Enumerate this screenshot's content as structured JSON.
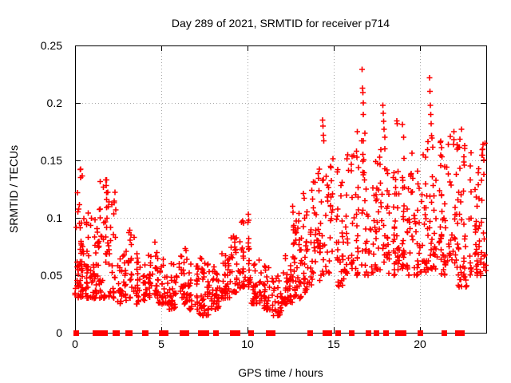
{
  "chart_data": {
    "type": "scatter",
    "title": "Day 289 of 2021, SRMTID for receiver p714",
    "xlabel": "GPS time / hours",
    "ylabel": "SRMTID / TECUs",
    "xlim": [
      0,
      23.84
    ],
    "ylim": [
      0,
      0.25
    ],
    "xticks": [
      0,
      5,
      10,
      15,
      20
    ],
    "yticks": [
      0,
      0.05,
      0.1,
      0.15,
      0.2,
      0.25
    ],
    "xtick_labels": [
      "0",
      "5",
      "10",
      "15",
      "20"
    ],
    "ytick_labels": [
      "0",
      "0.05",
      "0.1",
      "0.15",
      "0.2",
      "0.25"
    ],
    "grid": {
      "show": true,
      "style": "dotted",
      "color": "#a5a5a5"
    },
    "border_color": "#000000",
    "text_color": "#000000",
    "marker": {
      "shape": "plus",
      "color": "#ff0000",
      "size": 7
    },
    "zero_marker": {
      "shape": "filled-square",
      "color": "#ff0000",
      "size": 7
    },
    "seed": 77,
    "series": [
      {
        "name": "SRMTID",
        "representation": "density_envelope",
        "envelope_format": [
          "start_hour",
          "end_hour",
          "y_min",
          "y_max",
          "point_count"
        ],
        "envelope": [
          [
            0.0,
            0.35,
            0.03,
            0.145,
            35
          ],
          [
            0.35,
            0.9,
            0.03,
            0.105,
            45
          ],
          [
            0.9,
            1.4,
            0.03,
            0.115,
            40
          ],
          [
            1.4,
            1.9,
            0.03,
            0.135,
            35
          ],
          [
            1.9,
            2.4,
            0.03,
            0.125,
            30
          ],
          [
            2.4,
            3.0,
            0.025,
            0.075,
            35
          ],
          [
            3.0,
            3.6,
            0.03,
            0.09,
            30
          ],
          [
            3.6,
            4.2,
            0.025,
            0.065,
            30
          ],
          [
            4.2,
            4.8,
            0.03,
            0.085,
            35
          ],
          [
            4.8,
            5.4,
            0.025,
            0.065,
            30
          ],
          [
            5.4,
            6.0,
            0.02,
            0.06,
            30
          ],
          [
            6.0,
            6.6,
            0.025,
            0.075,
            35
          ],
          [
            6.6,
            7.2,
            0.02,
            0.06,
            30
          ],
          [
            7.2,
            7.8,
            0.015,
            0.065,
            45
          ],
          [
            7.8,
            8.4,
            0.02,
            0.06,
            35
          ],
          [
            8.4,
            9.0,
            0.03,
            0.07,
            35
          ],
          [
            9.0,
            9.6,
            0.035,
            0.085,
            35
          ],
          [
            9.6,
            10.2,
            0.04,
            0.105,
            35
          ],
          [
            10.2,
            10.8,
            0.025,
            0.065,
            35
          ],
          [
            10.8,
            11.4,
            0.02,
            0.06,
            30
          ],
          [
            11.4,
            12.0,
            0.015,
            0.05,
            30
          ],
          [
            12.0,
            12.6,
            0.025,
            0.07,
            45
          ],
          [
            12.6,
            13.2,
            0.03,
            0.11,
            45
          ],
          [
            13.2,
            13.8,
            0.035,
            0.125,
            40
          ],
          [
            13.8,
            14.4,
            0.045,
            0.15,
            35
          ],
          [
            14.4,
            15.0,
            0.05,
            0.155,
            30
          ],
          [
            15.0,
            15.6,
            0.04,
            0.145,
            30
          ],
          [
            15.6,
            16.2,
            0.05,
            0.155,
            30
          ],
          [
            16.2,
            16.8,
            0.05,
            0.175,
            35
          ],
          [
            16.8,
            17.4,
            0.05,
            0.135,
            30
          ],
          [
            17.4,
            18.0,
            0.055,
            0.16,
            35
          ],
          [
            18.0,
            18.6,
            0.05,
            0.145,
            35
          ],
          [
            18.6,
            19.2,
            0.055,
            0.185,
            40
          ],
          [
            19.2,
            19.8,
            0.05,
            0.17,
            35
          ],
          [
            19.8,
            20.4,
            0.05,
            0.155,
            35
          ],
          [
            20.4,
            21.0,
            0.055,
            0.175,
            40
          ],
          [
            21.0,
            21.6,
            0.05,
            0.17,
            40
          ],
          [
            21.6,
            22.2,
            0.055,
            0.18,
            35
          ],
          [
            22.2,
            22.8,
            0.04,
            0.175,
            40
          ],
          [
            22.8,
            23.4,
            0.05,
            0.17,
            35
          ],
          [
            23.4,
            23.84,
            0.05,
            0.168,
            30
          ]
        ],
        "outliers": [
          [
            0.3,
            0.142
          ],
          [
            0.33,
            0.135
          ],
          [
            1.78,
            0.133
          ],
          [
            1.8,
            0.128
          ],
          [
            1.82,
            0.122
          ],
          [
            1.84,
            0.116
          ],
          [
            10.05,
            0.103
          ],
          [
            10.07,
            0.098
          ],
          [
            12.62,
            0.11
          ],
          [
            12.64,
            0.105
          ],
          [
            14.35,
            0.185
          ],
          [
            14.38,
            0.18
          ],
          [
            14.4,
            0.172
          ],
          [
            14.42,
            0.167
          ],
          [
            16.65,
            0.229
          ],
          [
            16.67,
            0.213
          ],
          [
            16.68,
            0.209
          ],
          [
            16.7,
            0.2
          ],
          [
            16.72,
            0.19
          ],
          [
            17.85,
            0.198
          ],
          [
            17.87,
            0.191
          ],
          [
            17.9,
            0.184
          ],
          [
            17.92,
            0.177
          ],
          [
            17.95,
            0.17
          ],
          [
            17.97,
            0.16
          ],
          [
            20.55,
            0.222
          ],
          [
            20.57,
            0.21
          ],
          [
            20.6,
            0.198
          ],
          [
            20.62,
            0.19
          ],
          [
            20.65,
            0.182
          ],
          [
            21.76,
            0.171
          ],
          [
            22.4,
            0.177
          ],
          [
            22.6,
            0.163
          ]
        ],
        "zero_value_hours": [
          0.09,
          1.17,
          1.3,
          1.53,
          1.74,
          2.36,
          2.42,
          3.1,
          3.17,
          4.03,
          4.1,
          5.01,
          5.26,
          6.22,
          6.45,
          7.3,
          7.61,
          8.19,
          9.12,
          9.43,
          10.2,
          11.23,
          11.3,
          11.47,
          13.63,
          14.52,
          14.75,
          15.25,
          16.02,
          17.02,
          17.49,
          18.02,
          18.72,
          19.03,
          20.03,
          21.42,
          22.19,
          22.3,
          22.42
        ]
      }
    ]
  }
}
